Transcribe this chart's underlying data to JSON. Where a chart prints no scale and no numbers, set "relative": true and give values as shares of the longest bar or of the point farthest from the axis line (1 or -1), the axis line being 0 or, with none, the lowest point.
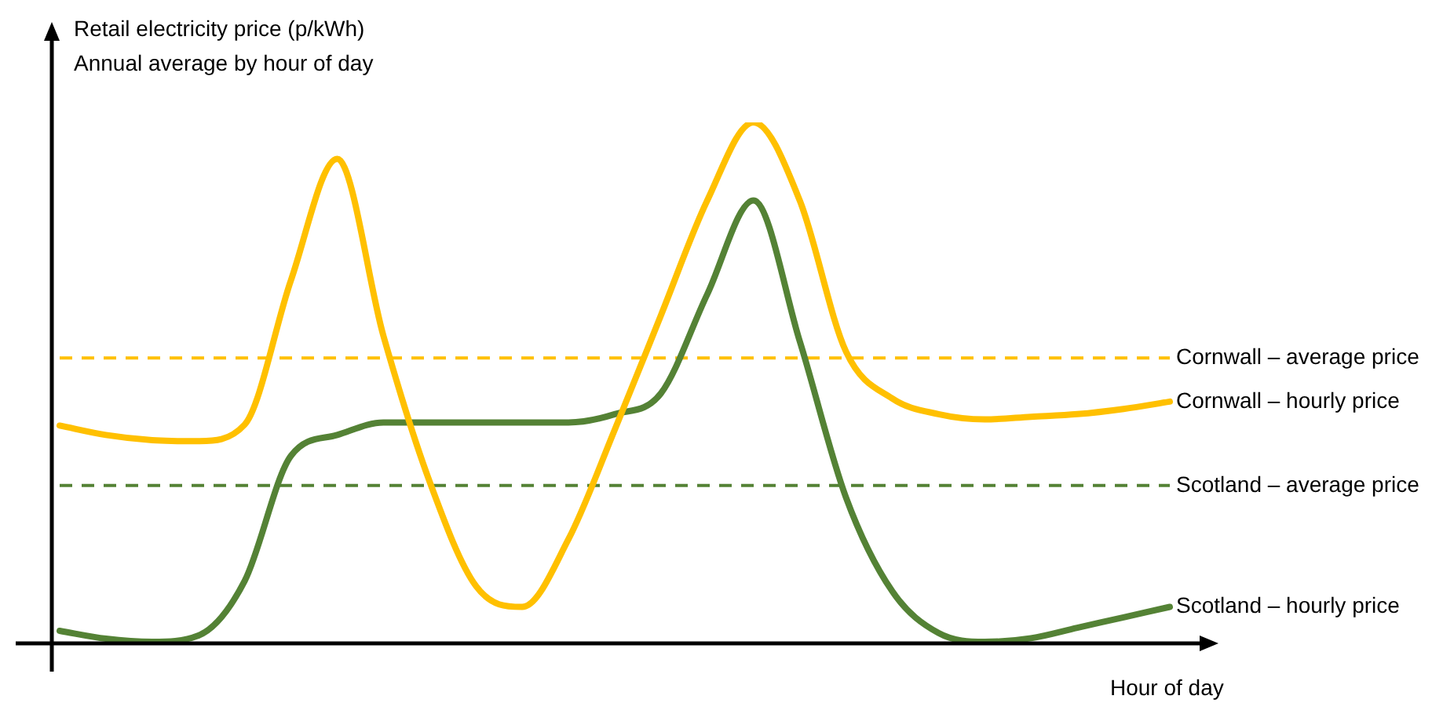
{
  "chart_data": {
    "type": "line",
    "relative": true,
    "title": "Retail electricity price (p/kWh)",
    "subtitle": "Annual average by hour of day",
    "xlabel": "Hour of day",
    "categories": [
      null,
      null,
      null,
      null,
      null,
      null,
      null,
      null,
      null,
      null,
      null,
      null,
      null,
      null,
      null,
      null,
      null,
      null,
      null,
      null,
      null,
      null,
      null,
      null,
      null
    ],
    "series": [
      {
        "name": "Cornwall – hourly price",
        "color": "#ffc000",
        "values": [
          0.418,
          0.4,
          0.39,
          0.388,
          0.42,
          0.697,
          0.93,
          0.59,
          0.31,
          0.11,
          0.07,
          0.2,
          0.41,
          0.63,
          0.85,
          1,
          0.85,
          0.56,
          0.47,
          0.44,
          0.43,
          0.435,
          0.44,
          0.45,
          0.464
        ]
      },
      {
        "name": "Scotland – hourly price",
        "color": "#548235",
        "values": [
          0.024,
          0.009,
          0.003,
          0.015,
          0.12,
          0.36,
          0.4,
          0.424,
          0.424,
          0.424,
          0.424,
          0.424,
          0.44,
          0.48,
          0.67,
          0.85,
          0.58,
          0.28,
          0.1,
          0.02,
          0.003,
          0.01,
          0.03,
          0.05,
          0.07
        ]
      }
    ],
    "ref_lines": [
      {
        "axis": "y",
        "value": 0.548,
        "label": "Cornwall – average price",
        "color": "#ffc000",
        "line_style": "dashed"
      },
      {
        "axis": "y",
        "value": 0.303,
        "label": "Scotland – average price",
        "color": "#548235",
        "line_style": "dashed"
      }
    ],
    "legend": false,
    "line_style": "solid",
    "marker": "none"
  }
}
